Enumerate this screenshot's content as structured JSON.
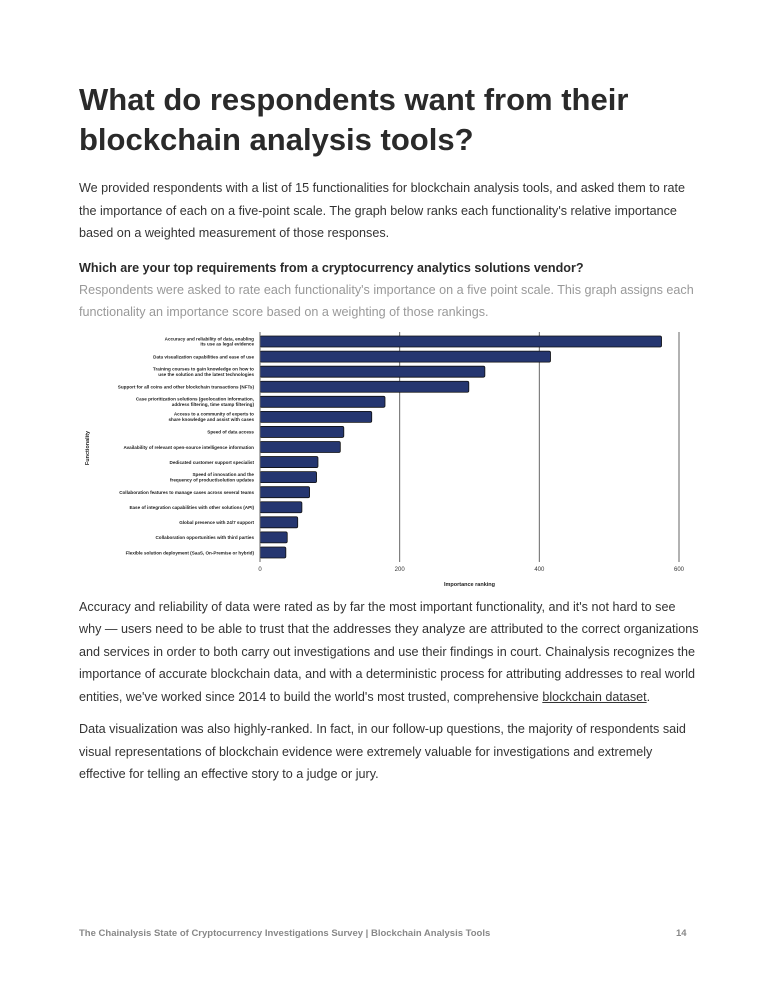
{
  "title": "What do respondents want from their blockchain analysis tools?",
  "intro": "We provided respondents with a list of 15 functionalities for blockchain analysis tools, and asked them to rate the importance of each on a five-point scale. The graph below ranks each functionality's relative importance based on a weighted measurement of those responses.",
  "chart_question": "Which are your top requirements from a cryptocurrency analytics solutions vendor?",
  "chart_subtitle": "Respondents were asked to rate each functionality's importance on a five point scale. This graph assigns each functionality an importance score based on a weighting of those rankings.",
  "chart_data": {
    "type": "bar",
    "orientation": "horizontal",
    "xlabel": "Importance ranking",
    "ylabel": "Functionality",
    "xlim": [
      0,
      600
    ],
    "xticks": [
      "0",
      "200",
      "400",
      "600"
    ],
    "grid": true,
    "bar_color": "#253670",
    "categories": [
      "Accuracy and reliability of data, enabling its use as legal evidence",
      "Data visualization capabilities and ease of use",
      "Training courses to gain knowledge on how to use the solution and the latest technologies",
      "Support for all coins and other blockchain transactions (NFTs)",
      "Case prioritization solutions (geolocation information, address filtering, time stamp filtering)",
      "Access to a community of experts to share knowledge and assist with cases",
      "Speed of data access",
      "Availability of relevant open-source intelligence information",
      "Dedicated customer support specialist",
      "Speed of innovation and the frequency of product/solution updates",
      "Collaboration features to manage cases across several teams",
      "Ease of integration capabilities with other solutions (API)",
      "Global presence with 24/7 support",
      "Collaboration opportunities with third parties",
      "Flexible solution deployment (SaaS, On-Premise or hybrid)"
    ],
    "values": [
      575,
      416,
      322,
      299,
      179,
      160,
      120,
      115,
      83,
      81,
      71,
      60,
      54,
      39,
      37
    ]
  },
  "para1_before_link": "Accuracy and reliability of data were rated as by far the most important functionality, and it's not hard to see why — users need to be able to trust that the addresses they analyze are attributed to the correct organizations and services in order to both carry out investigations and use their findings in court. Chainalysis recognizes the importance of accurate blockchain data, and with a deterministic process for attributing addresses to real world entities, we've worked since 2014 to build the world's most trusted, comprehensive ",
  "para1_link": "blockchain dataset",
  "para1_after_link": ".",
  "para2": "Data visualization was also highly-ranked. In fact, in our follow-up questions, the majority of respondents said visual representations of blockchain evidence were extremely valuable for investigations and extremely effective for telling an effective story to a judge or jury.",
  "footer": "The Chainalysis State of Cryptocurrency Investigations Survey | Blockchain Analysis Tools",
  "page_number": "14"
}
